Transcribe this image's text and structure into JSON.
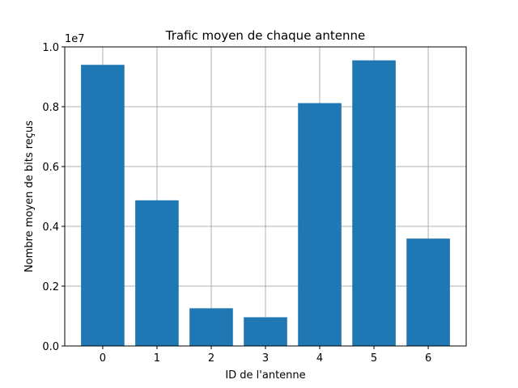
{
  "chart_data": {
    "type": "bar",
    "title": "Trafic moyen de chaque antenne",
    "xlabel": "ID de l'antenne",
    "ylabel": "Nombre moyen de bits reçus",
    "y_offset_label": "1e7",
    "categories": [
      "0",
      "1",
      "2",
      "3",
      "4",
      "5",
      "6"
    ],
    "values": [
      9400000,
      4870000,
      1260000,
      960000,
      8120000,
      9550000,
      3590000
    ],
    "ylim": [
      0,
      10000000
    ],
    "y_ticks": [
      0,
      2000000,
      4000000,
      6000000,
      8000000,
      10000000
    ],
    "y_tick_labels": [
      "0.0",
      "0.2",
      "0.4",
      "0.6",
      "0.8",
      "1.0"
    ],
    "grid": true,
    "bar_color": "#1f77b4",
    "grid_color": "#b0b0b0"
  }
}
